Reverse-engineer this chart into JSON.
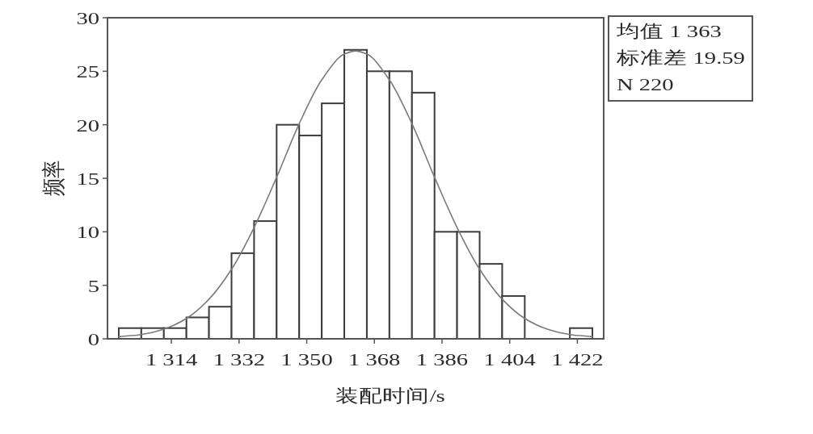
{
  "chart_data": {
    "type": "histogram",
    "xlabel": "装配时间/s",
    "ylabel": "频率",
    "bins": [
      1300,
      1306,
      1312,
      1318,
      1324,
      1330,
      1336,
      1342,
      1348,
      1354,
      1360,
      1366,
      1372,
      1378,
      1384,
      1390,
      1396,
      1402,
      1408,
      1414,
      1420,
      1426
    ],
    "series": [
      {
        "values": [
          1,
          1,
          1,
          2,
          3,
          8,
          11,
          20,
          19,
          22,
          27,
          25,
          25,
          23,
          10,
          10,
          7,
          4,
          0,
          0,
          1
        ],
        "color": "#ffffff"
      },
      {
        "type": "line",
        "color": "#7a7a7a",
        "x": [
          1300,
          1306,
          1312,
          1318,
          1324,
          1330,
          1336,
          1342,
          1348,
          1354,
          1360,
          1363,
          1366,
          1372,
          1378,
          1384,
          1390,
          1396,
          1402,
          1408,
          1414,
          1420,
          1426
        ],
        "values": [
          0.2,
          0.4,
          0.9,
          1.9,
          3.7,
          6.5,
          10.4,
          15.1,
          20.1,
          24.2,
          26.6,
          26.9,
          26.6,
          24.2,
          20.1,
          15.1,
          10.4,
          6.5,
          3.7,
          1.9,
          0.9,
          0.4,
          0.2
        ]
      }
    ],
    "xlim": [
      1297,
      1429
    ],
    "xticks": [
      {
        "value": 1314,
        "label": "1 314"
      },
      {
        "value": 1332,
        "label": "1 332"
      },
      {
        "value": 1350,
        "label": "1 350"
      },
      {
        "value": 1368,
        "label": "1 368"
      },
      {
        "value": 1386,
        "label": "1 386"
      },
      {
        "value": 1404,
        "label": "1 404"
      },
      {
        "value": 1422,
        "label": "1 422"
      }
    ],
    "ylim": [
      0,
      30
    ],
    "yticks": [
      0,
      5,
      10,
      15,
      20,
      25,
      30
    ],
    "annotations": [
      "均值 1 363",
      "标准差 19.59",
      "N 220"
    ]
  }
}
